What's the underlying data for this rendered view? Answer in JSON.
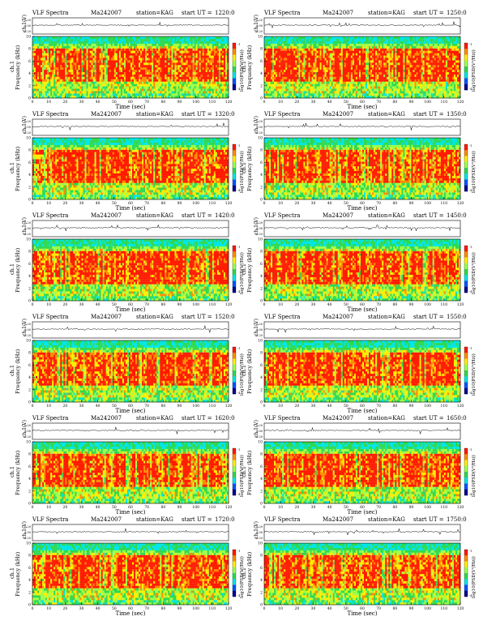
{
  "page": {
    "panel_title": "VLF Spectra",
    "date": "Ma242007",
    "station": "station=KAG",
    "start_label": "start  UT  =",
    "ch_label": "ch.1(V)",
    "ch_ticks": [
      "0.20",
      "0.00",
      "-0.20"
    ],
    "freq_label": "Frequency (kHz)",
    "ch_side_label": "ch.1",
    "time_label": "Time (sec)",
    "cbar_label": "log10(PSD(V²/Hz))",
    "cbar_ticks": [
      "-1",
      "-4"
    ]
  },
  "chart_data": [
    {
      "type": "heatmap",
      "start_ut": "1220:0",
      "xlabel": "Time (sec)",
      "ylabel": "Frequency (kHz)",
      "xlim": [
        0,
        120
      ],
      "ylim": [
        0,
        10
      ],
      "x_ticks": [
        0,
        10,
        20,
        30,
        40,
        50,
        60,
        70,
        80,
        90,
        100,
        110,
        120
      ],
      "y_ticks": [
        0,
        2,
        4,
        6,
        8,
        10
      ]
    },
    {
      "type": "heatmap",
      "start_ut": "1250:0",
      "xlabel": "Time (sec)",
      "ylabel": "Frequency (kHz)",
      "xlim": [
        0,
        120
      ],
      "ylim": [
        0,
        10
      ],
      "x_ticks": [
        0,
        10,
        20,
        30,
        40,
        50,
        60,
        70,
        80,
        90,
        100,
        110,
        120
      ],
      "y_ticks": [
        0,
        2,
        4,
        6,
        8,
        10
      ]
    },
    {
      "type": "heatmap",
      "start_ut": "1320:0",
      "xlabel": "Time (sec)",
      "ylabel": "Frequency (kHz)",
      "xlim": [
        0,
        120
      ],
      "ylim": [
        0,
        10
      ],
      "x_ticks": [
        0,
        10,
        20,
        30,
        40,
        50,
        60,
        70,
        80,
        90,
        100,
        110,
        120
      ],
      "y_ticks": [
        0,
        2,
        4,
        6,
        8,
        10
      ]
    },
    {
      "type": "heatmap",
      "start_ut": "1350:0",
      "xlabel": "Time (sec)",
      "ylabel": "Frequency (kHz)",
      "xlim": [
        0,
        120
      ],
      "ylim": [
        0,
        10
      ],
      "x_ticks": [
        0,
        10,
        20,
        30,
        40,
        50,
        60,
        70,
        80,
        90,
        100,
        110,
        120
      ],
      "y_ticks": [
        0,
        2,
        4,
        6,
        8,
        10
      ]
    },
    {
      "type": "heatmap",
      "start_ut": "1420:0",
      "xlabel": "Time (sec)",
      "ylabel": "Frequency (kHz)",
      "xlim": [
        0,
        120
      ],
      "ylim": [
        0,
        10
      ],
      "x_ticks": [
        0,
        10,
        20,
        30,
        40,
        50,
        60,
        70,
        80,
        90,
        100,
        110,
        120
      ],
      "y_ticks": [
        0,
        2,
        4,
        6,
        8,
        10
      ]
    },
    {
      "type": "heatmap",
      "start_ut": "1450:0",
      "xlabel": "Time (sec)",
      "ylabel": "Frequency (kHz)",
      "xlim": [
        0,
        120
      ],
      "ylim": [
        0,
        10
      ],
      "x_ticks": [
        0,
        10,
        20,
        30,
        40,
        50,
        60,
        70,
        80,
        90,
        100,
        110,
        120
      ],
      "y_ticks": [
        0,
        2,
        4,
        6,
        8,
        10
      ]
    },
    {
      "type": "heatmap",
      "start_ut": "1520:0",
      "xlabel": "Time (sec)",
      "ylabel": "Frequency (kHz)",
      "xlim": [
        0,
        120
      ],
      "ylim": [
        0,
        10
      ],
      "x_ticks": [
        0,
        10,
        20,
        30,
        40,
        50,
        60,
        70,
        80,
        90,
        100,
        110,
        120
      ],
      "y_ticks": [
        0,
        2,
        4,
        6,
        8,
        10
      ]
    },
    {
      "type": "heatmap",
      "start_ut": "1550:0",
      "xlabel": "Time (sec)",
      "ylabel": "Frequency (kHz)",
      "xlim": [
        0,
        120
      ],
      "ylim": [
        0,
        10
      ],
      "x_ticks": [
        0,
        10,
        20,
        30,
        40,
        50,
        60,
        70,
        80,
        90,
        100,
        110,
        120
      ],
      "y_ticks": [
        0,
        2,
        4,
        6,
        8,
        10
      ]
    },
    {
      "type": "heatmap",
      "start_ut": "1620:0",
      "xlabel": "Time (sec)",
      "ylabel": "Frequency (kHz)",
      "xlim": [
        0,
        120
      ],
      "ylim": [
        0,
        10
      ],
      "x_ticks": [
        0,
        10,
        20,
        30,
        40,
        50,
        60,
        70,
        80,
        90,
        100,
        110,
        120
      ],
      "y_ticks": [
        0,
        2,
        4,
        6,
        8,
        10
      ]
    },
    {
      "type": "heatmap",
      "start_ut": "1650:0",
      "xlabel": "Time (sec)",
      "ylabel": "Frequency (kHz)",
      "xlim": [
        0,
        120
      ],
      "ylim": [
        0,
        10
      ],
      "x_ticks": [
        0,
        10,
        20,
        30,
        40,
        50,
        60,
        70,
        80,
        90,
        100,
        110,
        120
      ],
      "y_ticks": [
        0,
        2,
        4,
        6,
        8,
        10
      ]
    },
    {
      "type": "heatmap",
      "start_ut": "1720:0",
      "xlabel": "Time (sec)",
      "ylabel": "Frequency (kHz)",
      "xlim": [
        0,
        120
      ],
      "ylim": [
        0,
        10
      ],
      "x_ticks": [
        0,
        10,
        20,
        30,
        40,
        50,
        60,
        70,
        80,
        90,
        100,
        110,
        120
      ],
      "y_ticks": [
        0,
        2,
        4,
        6,
        8,
        10
      ]
    },
    {
      "type": "heatmap",
      "start_ut": "1750:0",
      "xlabel": "Time (sec)",
      "ylabel": "Frequency (kHz)",
      "xlim": [
        0,
        120
      ],
      "ylim": [
        0,
        10
      ],
      "x_ticks": [
        0,
        10,
        20,
        30,
        40,
        50,
        60,
        70,
        80,
        90,
        100,
        110,
        120
      ],
      "y_ticks": [
        0,
        2,
        4,
        6,
        8,
        10
      ]
    }
  ],
  "colors": {
    "red": "#ff1a00",
    "orange": "#ff8c00",
    "yellow": "#ffee00",
    "lightgreen": "#9cff4a",
    "green": "#2fd94f",
    "cyan": "#00e6e6",
    "blue": "#0055ff",
    "darkblue": "#000090"
  }
}
